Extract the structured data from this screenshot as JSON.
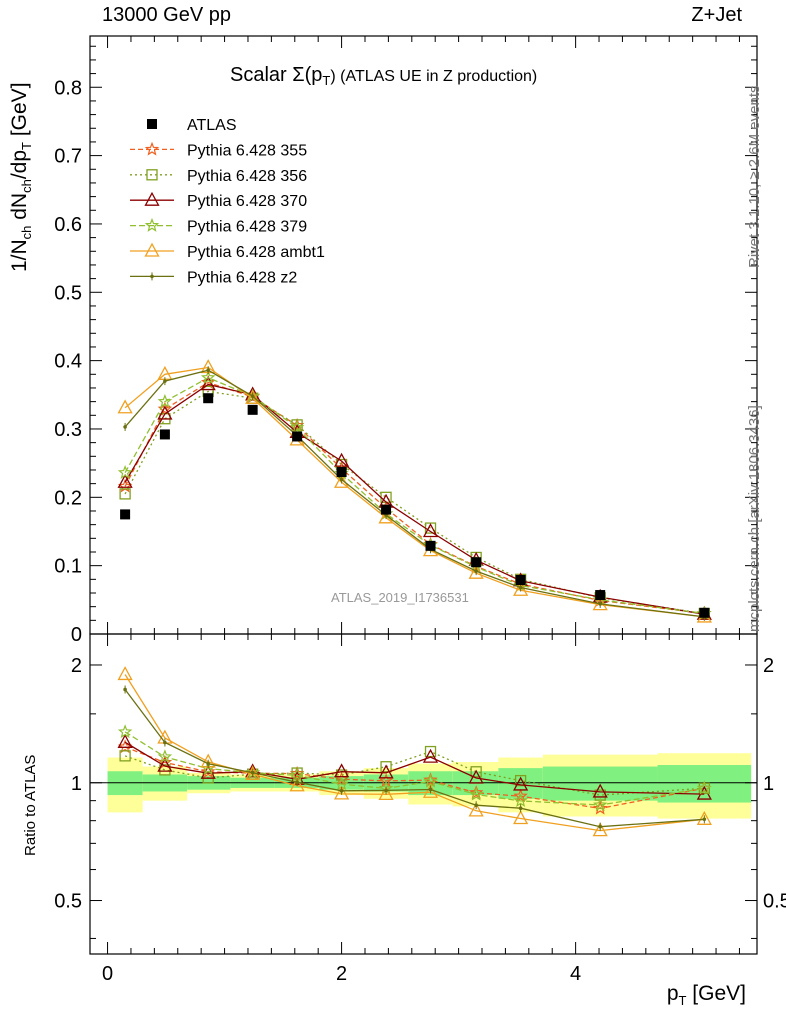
{
  "header": {
    "left": "13000 GeV pp",
    "right": "Z+Jet",
    "rivet": "Rivet 3.1.10, ≥ 2.6M events",
    "mcplots": "mcplots.cern.ch [arXiv:1306.3436]",
    "analysis": "ATLAS_2019_I1736531"
  },
  "chart_data": {
    "type": "scatter",
    "title_prefix": "Scalar Σ(p",
    "title_sub": "T",
    "title_suffix": ") (ATLAS UE in Z production)",
    "xlabel": "p",
    "xlabel_sub": "T",
    "xlabel_unit": " [GeV]",
    "ylabel_main": "1/N",
    "ylabel_main_sub": "ch",
    "ylabel_mid": " dN",
    "ylabel_mid_sub": "ch",
    "ylabel_end": "/dp",
    "ylabel_end_sub": "T",
    "ylabel_unit": " [GeV]",
    "ratio_ylabel": "Ratio to ATLAS",
    "xlim": [
      -0.15,
      5.55
    ],
    "ylim_main": [
      0,
      0.875
    ],
    "ylim_ratio": [
      0.365,
      2.4
    ],
    "ratio_scale": "log",
    "x_ticks": [
      "0",
      "2",
      "4"
    ],
    "y_ticks_main": [
      "0",
      "0.1",
      "0.2",
      "0.3",
      "0.4",
      "0.5",
      "0.6",
      "0.7",
      "0.8"
    ],
    "y_ticks_ratio": [
      "0.5",
      "1",
      "2"
    ],
    "x": [
      0.15,
      0.49,
      0.86,
      1.24,
      1.62,
      2.0,
      2.38,
      2.76,
      3.15,
      3.53,
      4.21,
      5.1
    ],
    "bin_edges": [
      0,
      0.3,
      0.68,
      1.05,
      1.43,
      1.81,
      2.19,
      2.57,
      2.95,
      3.34,
      3.72,
      4.7,
      5.5
    ],
    "band_inner": [
      0.07,
      0.05,
      0.04,
      0.03,
      0.03,
      0.04,
      0.05,
      0.07,
      0.07,
      0.09,
      0.1,
      0.11
    ],
    "band_outer": [
      0.16,
      0.1,
      0.06,
      0.05,
      0.05,
      0.07,
      0.09,
      0.12,
      0.13,
      0.16,
      0.18,
      0.19
    ],
    "colors": {
      "band_inner": "#80f080",
      "band_outer": "#ffff99"
    },
    "data": {
      "name": "ATLAS",
      "values": [
        0.175,
        0.292,
        0.345,
        0.328,
        0.289,
        0.237,
        0.182,
        0.129,
        0.105,
        0.079,
        0.057,
        0.031
      ]
    },
    "series": [
      {
        "name": "Pythia 6.428 355",
        "color": "#f06020",
        "dash": "5,3",
        "marker": "star",
        "values": [
          0.216,
          0.329,
          0.368,
          0.347,
          0.305,
          0.242,
          0.184,
          0.131,
          0.099,
          0.073,
          0.049,
          0.03
        ]
      },
      {
        "name": "Pythia 6.428 356",
        "color": "#80a020",
        "dash": "2,3",
        "marker": "square",
        "values": [
          0.205,
          0.315,
          0.355,
          0.345,
          0.306,
          0.248,
          0.2,
          0.155,
          0.112,
          0.08,
          0.053,
          0.03
        ]
      },
      {
        "name": "Pythia 6.428 370",
        "color": "#8b0000",
        "dash": "",
        "marker": "triangle",
        "values": [
          0.222,
          0.322,
          0.365,
          0.35,
          0.295,
          0.253,
          0.193,
          0.15,
          0.108,
          0.078,
          0.054,
          0.029
        ]
      },
      {
        "name": "Pythia 6.428 379",
        "color": "#90c030",
        "dash": "6,3",
        "marker": "star",
        "values": [
          0.236,
          0.34,
          0.375,
          0.348,
          0.302,
          0.235,
          0.176,
          0.13,
          0.098,
          0.071,
          0.05,
          0.03
        ]
      },
      {
        "name": "Pythia 6.428 ambt1",
        "color": "#f0a020",
        "dash": "",
        "marker": "triangle",
        "values": [
          0.331,
          0.38,
          0.39,
          0.345,
          0.284,
          0.222,
          0.17,
          0.122,
          0.089,
          0.064,
          0.043,
          0.025
        ]
      },
      {
        "name": "Pythia 6.428 z2",
        "color": "#6b7010",
        "dash": "",
        "marker": "dot",
        "values": [
          0.303,
          0.37,
          0.386,
          0.348,
          0.29,
          0.226,
          0.174,
          0.124,
          0.092,
          0.068,
          0.044,
          0.025
        ]
      }
    ]
  }
}
